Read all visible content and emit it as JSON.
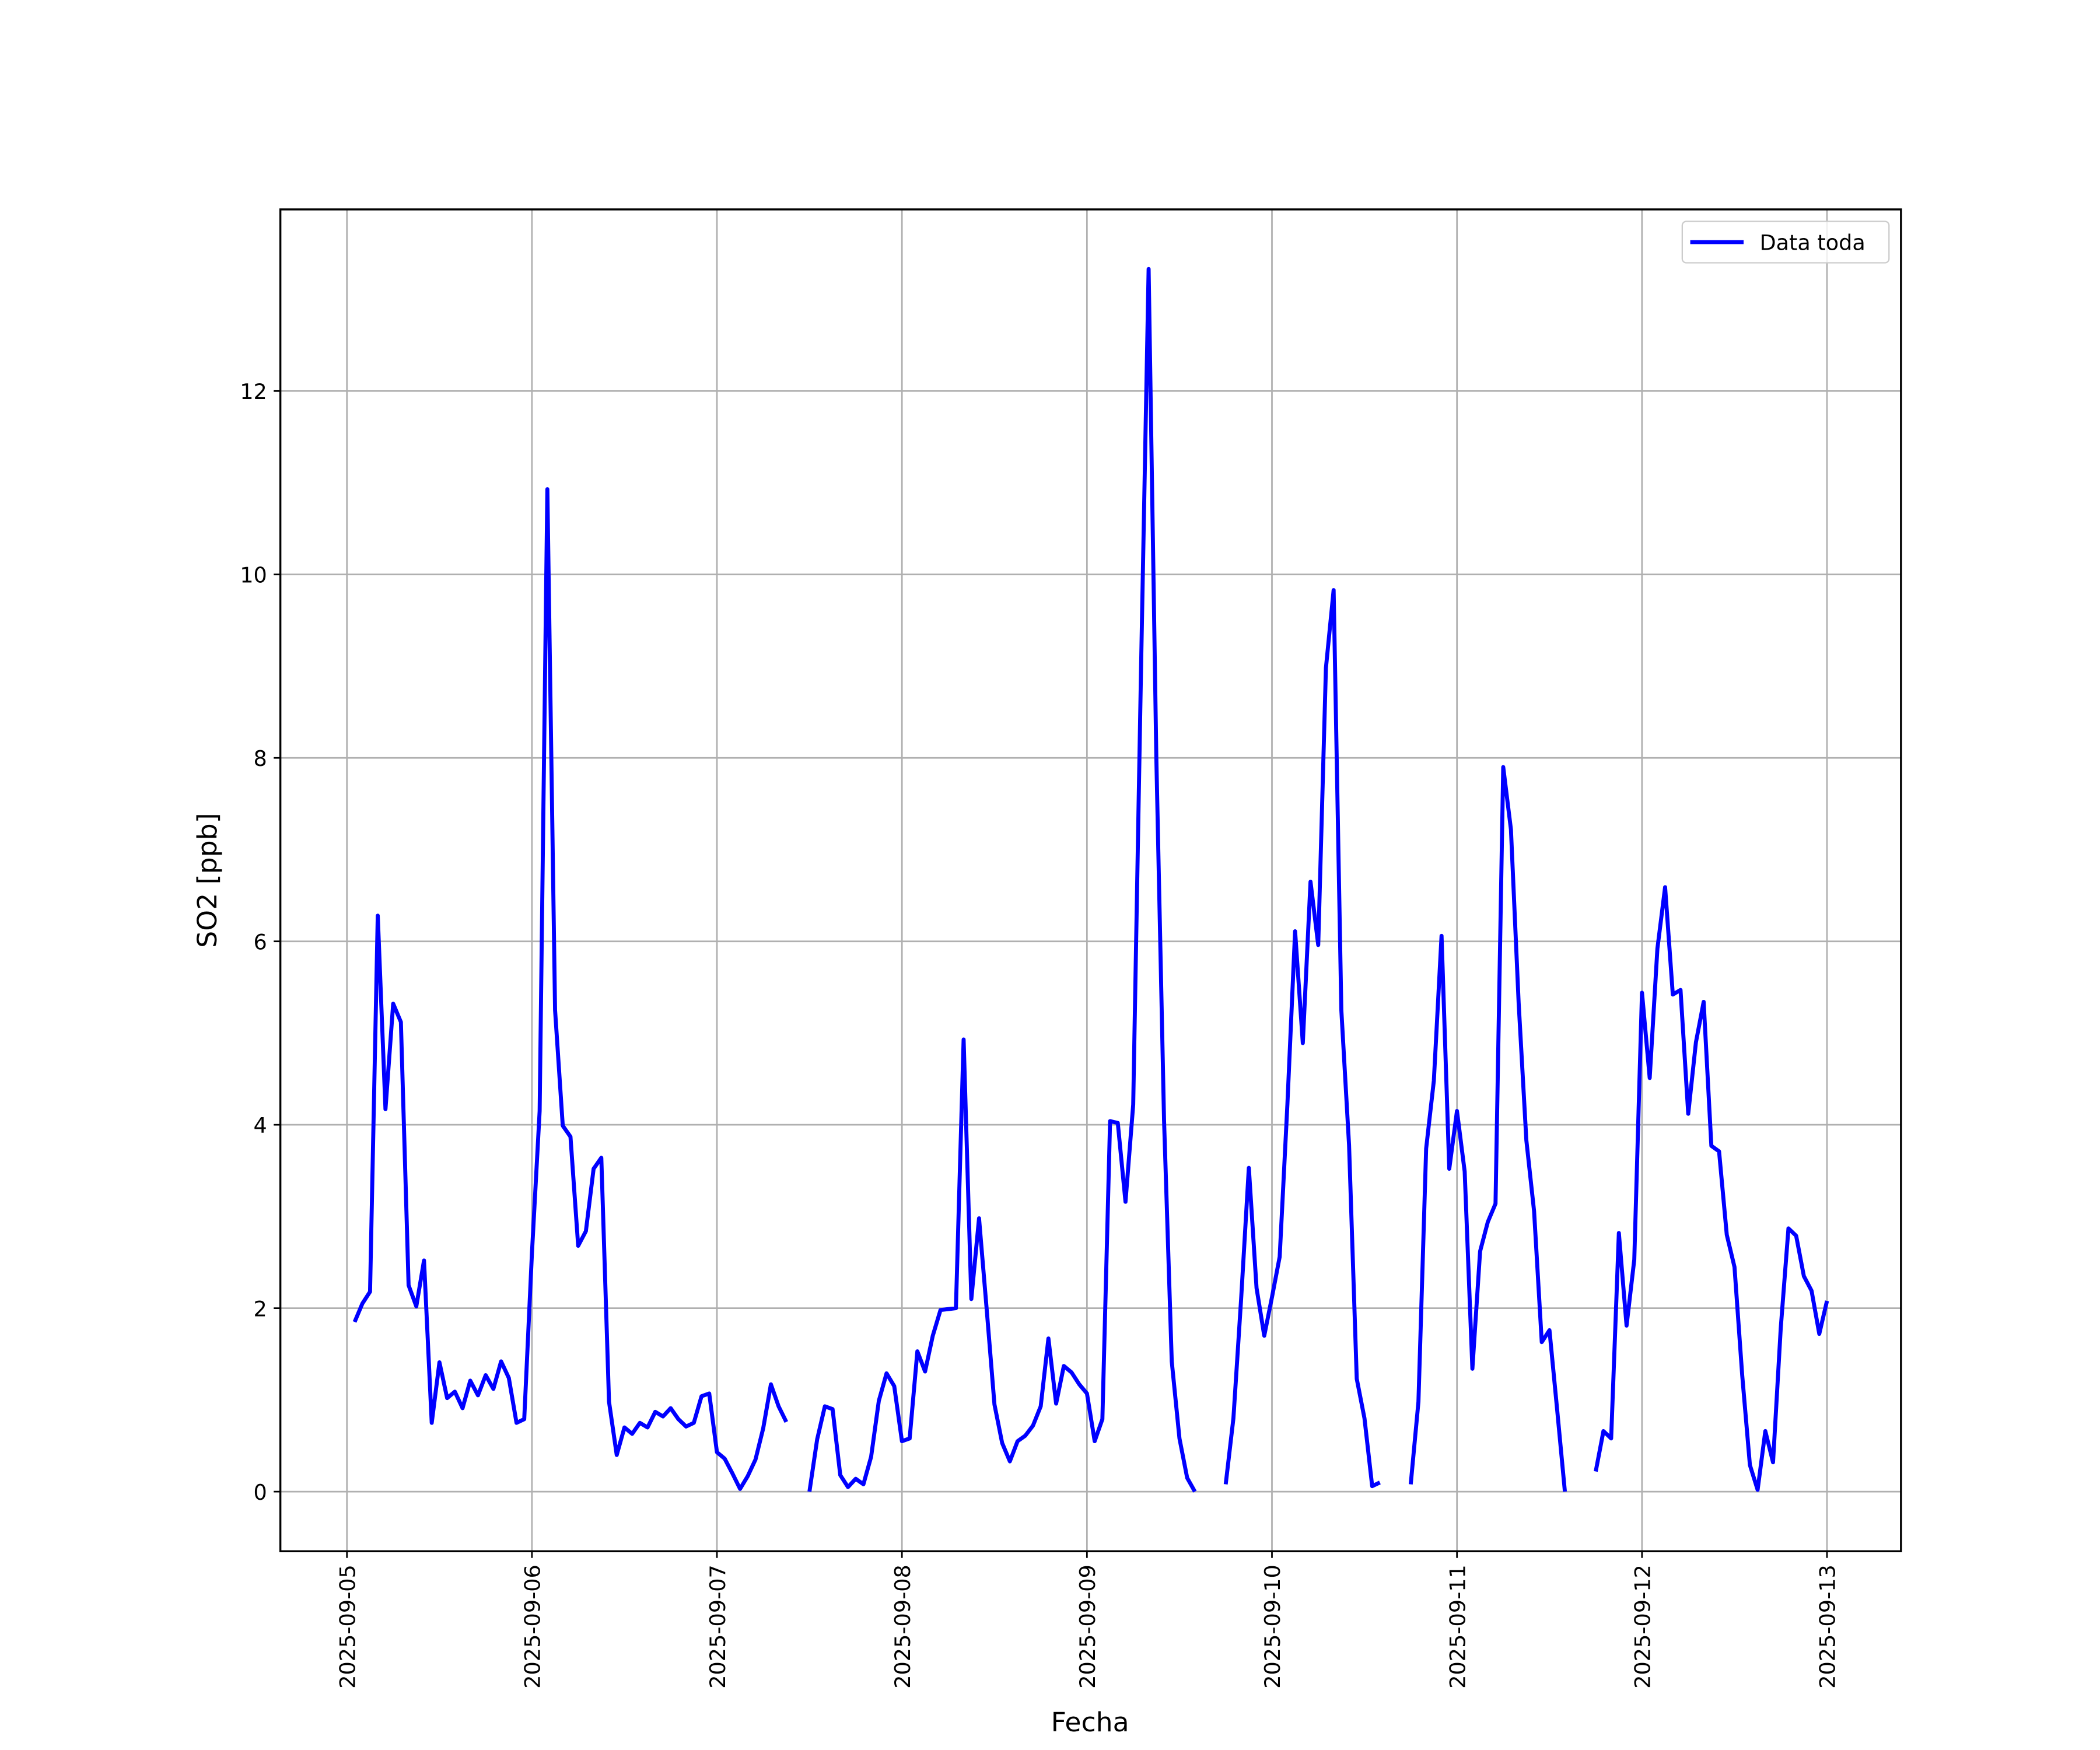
{
  "chart_data": {
    "type": "line",
    "xlabel": "Fecha",
    "ylabel": "SO2 [ppb]",
    "x": [
      "2025-09-05T01:00",
      "2025-09-05T02:00",
      "2025-09-05T03:00",
      "2025-09-05T04:00",
      "2025-09-05T05:00",
      "2025-09-05T06:00",
      "2025-09-05T07:00",
      "2025-09-05T08:00",
      "2025-09-05T09:00",
      "2025-09-05T10:00",
      "2025-09-05T11:00",
      "2025-09-05T12:00",
      "2025-09-05T13:00",
      "2025-09-05T14:00",
      "2025-09-05T15:00",
      "2025-09-05T16:00",
      "2025-09-05T17:00",
      "2025-09-05T18:00",
      "2025-09-05T19:00",
      "2025-09-05T20:00",
      "2025-09-05T21:00",
      "2025-09-05T22:00",
      "2025-09-05T23:00",
      "2025-09-06T00:00",
      "2025-09-06T01:00",
      "2025-09-06T02:00",
      "2025-09-06T03:00",
      "2025-09-06T04:00",
      "2025-09-06T05:00",
      "2025-09-06T06:00",
      "2025-09-06T07:00",
      "2025-09-06T08:00",
      "2025-09-06T09:00",
      "2025-09-06T10:00",
      "2025-09-06T11:00",
      "2025-09-06T12:00",
      "2025-09-06T13:00",
      "2025-09-06T14:00",
      "2025-09-06T15:00",
      "2025-09-06T16:00",
      "2025-09-06T17:00",
      "2025-09-06T18:00",
      "2025-09-06T19:00",
      "2025-09-06T20:00",
      "2025-09-06T21:00",
      "2025-09-06T22:00",
      "2025-09-06T23:00",
      "2025-09-07T00:00",
      "2025-09-07T01:00",
      "2025-09-07T02:00",
      "2025-09-07T03:00",
      "2025-09-07T04:00",
      "2025-09-07T05:00",
      "2025-09-07T06:00",
      "2025-09-07T07:00",
      "2025-09-07T08:00",
      "2025-09-07T09:00",
      "2025-09-07T10:00",
      "2025-09-07T11:00",
      "2025-09-07T12:00",
      "2025-09-07T13:00",
      "2025-09-07T14:00",
      "2025-09-07T15:00",
      "2025-09-07T16:00",
      "2025-09-07T17:00",
      "2025-09-07T18:00",
      "2025-09-07T19:00",
      "2025-09-07T20:00",
      "2025-09-07T21:00",
      "2025-09-07T22:00",
      "2025-09-07T23:00",
      "2025-09-08T00:00",
      "2025-09-08T01:00",
      "2025-09-08T02:00",
      "2025-09-08T03:00",
      "2025-09-08T04:00",
      "2025-09-08T05:00",
      "2025-09-08T06:00",
      "2025-09-08T07:00",
      "2025-09-08T08:00",
      "2025-09-08T09:00",
      "2025-09-08T10:00",
      "2025-09-08T11:00",
      "2025-09-08T12:00",
      "2025-09-08T13:00",
      "2025-09-08T14:00",
      "2025-09-08T15:00",
      "2025-09-08T16:00",
      "2025-09-08T17:00",
      "2025-09-08T18:00",
      "2025-09-08T19:00",
      "2025-09-08T20:00",
      "2025-09-08T21:00",
      "2025-09-08T22:00",
      "2025-09-08T23:00",
      "2025-09-09T00:00",
      "2025-09-09T01:00",
      "2025-09-09T02:00",
      "2025-09-09T03:00",
      "2025-09-09T04:00",
      "2025-09-09T05:00",
      "2025-09-09T06:00",
      "2025-09-09T07:00",
      "2025-09-09T08:00",
      "2025-09-09T09:00",
      "2025-09-09T10:00",
      "2025-09-09T11:00",
      "2025-09-09T12:00",
      "2025-09-09T13:00",
      "2025-09-09T14:00",
      "2025-09-09T15:00",
      "2025-09-09T16:00",
      "2025-09-09T17:00",
      "2025-09-09T18:00",
      "2025-09-09T19:00",
      "2025-09-09T20:00",
      "2025-09-09T21:00",
      "2025-09-09T22:00",
      "2025-09-09T23:00",
      "2025-09-10T00:00",
      "2025-09-10T01:00",
      "2025-09-10T02:00",
      "2025-09-10T03:00",
      "2025-09-10T04:00",
      "2025-09-10T05:00",
      "2025-09-10T06:00",
      "2025-09-10T07:00",
      "2025-09-10T08:00",
      "2025-09-10T09:00",
      "2025-09-10T10:00",
      "2025-09-10T11:00",
      "2025-09-10T12:00",
      "2025-09-10T13:00",
      "2025-09-10T14:00",
      "2025-09-10T15:00",
      "2025-09-10T16:00",
      "2025-09-10T17:00",
      "2025-09-10T18:00",
      "2025-09-10T19:00",
      "2025-09-10T20:00",
      "2025-09-10T21:00",
      "2025-09-10T22:00",
      "2025-09-10T23:00",
      "2025-09-11T00:00",
      "2025-09-11T01:00",
      "2025-09-11T02:00",
      "2025-09-11T03:00",
      "2025-09-11T04:00",
      "2025-09-11T05:00",
      "2025-09-11T06:00",
      "2025-09-11T07:00",
      "2025-09-11T08:00",
      "2025-09-11T09:00",
      "2025-09-11T10:00",
      "2025-09-11T11:00",
      "2025-09-11T12:00",
      "2025-09-11T13:00",
      "2025-09-11T14:00",
      "2025-09-11T15:00",
      "2025-09-11T16:00",
      "2025-09-11T17:00",
      "2025-09-11T18:00",
      "2025-09-11T19:00",
      "2025-09-11T20:00",
      "2025-09-11T21:00",
      "2025-09-11T22:00",
      "2025-09-11T23:00",
      "2025-09-12T00:00",
      "2025-09-12T01:00",
      "2025-09-12T02:00",
      "2025-09-12T03:00",
      "2025-09-12T04:00",
      "2025-09-12T05:00",
      "2025-09-12T06:00",
      "2025-09-12T07:00",
      "2025-09-12T08:00",
      "2025-09-12T09:00",
      "2025-09-12T10:00",
      "2025-09-12T11:00",
      "2025-09-12T12:00",
      "2025-09-12T13:00",
      "2025-09-12T14:00",
      "2025-09-12T15:00",
      "2025-09-12T16:00",
      "2025-09-12T17:00",
      "2025-09-12T18:00",
      "2025-09-12T19:00",
      "2025-09-12T20:00",
      "2025-09-12T21:00",
      "2025-09-12T22:00",
      "2025-09-12T23:00",
      "2025-09-13T00:00"
    ],
    "series": [
      {
        "name": "Data toda",
        "color": "#0000ff",
        "values": [
          1.85,
          2.05,
          2.18,
          6.28,
          4.17,
          5.32,
          5.12,
          2.25,
          2.02,
          2.52,
          0.75,
          1.41,
          1.02,
          1.09,
          0.91,
          1.21,
          1.05,
          1.27,
          1.12,
          1.42,
          1.24,
          0.75,
          0.79,
          2.6,
          4.15,
          10.93,
          5.25,
          3.99,
          3.87,
          2.68,
          2.84,
          3.52,
          3.64,
          0.98,
          0.4,
          0.7,
          0.63,
          0.75,
          0.7,
          0.87,
          0.82,
          0.91,
          0.79,
          0.71,
          0.75,
          1.04,
          1.07,
          0.43,
          0.36,
          0.2,
          0.03,
          0.17,
          0.35,
          0.69,
          1.17,
          0.93,
          0.76,
          null,
          null,
          0.0,
          0.57,
          0.93,
          0.9,
          0.18,
          0.05,
          0.14,
          0.08,
          0.38,
          0.99,
          1.29,
          1.15,
          0.55,
          0.58,
          1.53,
          1.31,
          1.7,
          1.98,
          1.99,
          2.0,
          4.93,
          2.1,
          2.98,
          1.98,
          0.95,
          0.53,
          0.33,
          0.55,
          0.61,
          0.72,
          0.93,
          1.67,
          0.96,
          1.37,
          1.3,
          1.17,
          1.07,
          0.55,
          0.79,
          4.04,
          4.02,
          3.16,
          4.22,
          8.9,
          13.33,
          8.0,
          4.05,
          1.42,
          0.58,
          0.15,
          0.0,
          null,
          null,
          null,
          0.08,
          0.8,
          2.1,
          3.53,
          2.22,
          1.7,
          2.12,
          2.56,
          4.22,
          6.11,
          4.89,
          6.65,
          5.96,
          8.98,
          9.83,
          5.25,
          3.78,
          1.23,
          0.8,
          0.06,
          0.1,
          null,
          null,
          null,
          0.08,
          0.98,
          3.74,
          4.48,
          6.06,
          3.52,
          4.15,
          3.49,
          1.34,
          2.62,
          2.94,
          3.14,
          7.9,
          7.22,
          5.33,
          3.83,
          3.06,
          1.63,
          1.76,
          0.89,
          0.0,
          null,
          null,
          null,
          0.22,
          0.66,
          0.58,
          2.82,
          1.81,
          2.53,
          5.44,
          4.51,
          5.92,
          6.59,
          5.42,
          5.47,
          4.12,
          4.9,
          5.34,
          3.77,
          3.71,
          2.8,
          2.45,
          1.27,
          0.29,
          0.02,
          0.66,
          0.32,
          1.78,
          2.87,
          2.79,
          2.35,
          2.19,
          1.72,
          2.08
        ]
      }
    ],
    "xlim": [
      "2025-09-04T15:22",
      "2025-09-13T09:36"
    ],
    "xticks": [
      "2025-09-05",
      "2025-09-06",
      "2025-09-07",
      "2025-09-08",
      "2025-09-09",
      "2025-09-10",
      "2025-09-11",
      "2025-09-12",
      "2025-09-13"
    ],
    "ylim": [
      -0.65,
      13.98
    ],
    "yticks": [
      0,
      2,
      4,
      6,
      8,
      10,
      12
    ],
    "grid": true,
    "legend": "upper right"
  }
}
